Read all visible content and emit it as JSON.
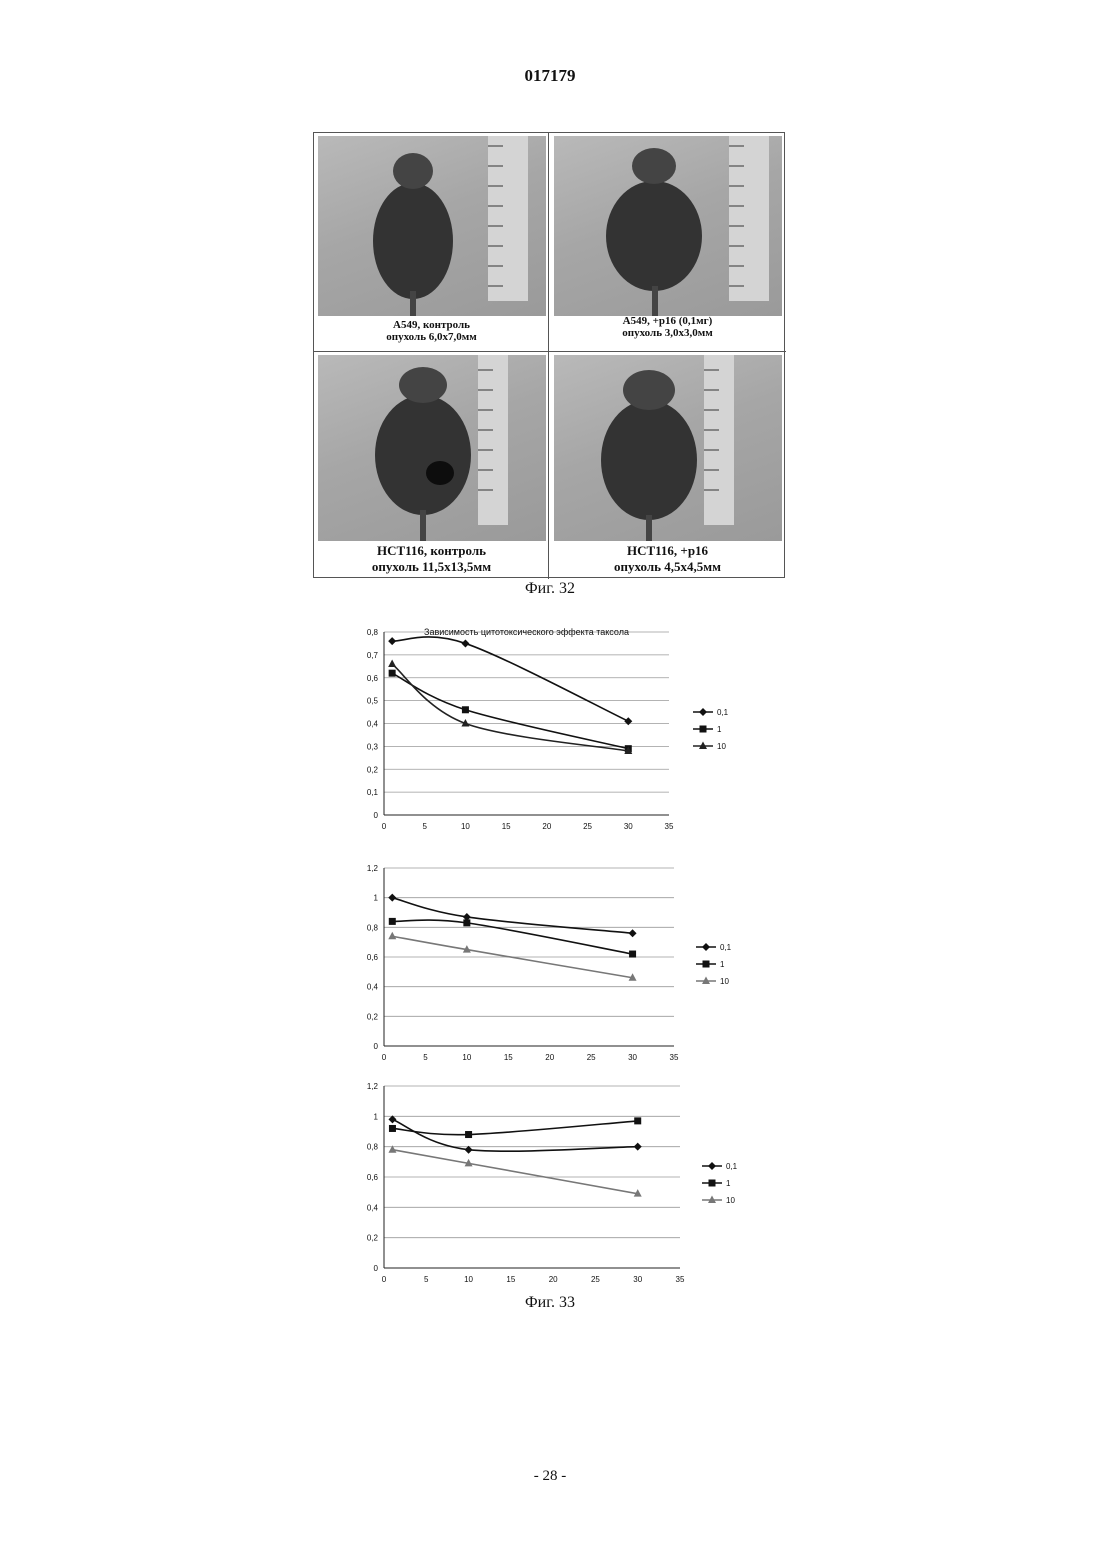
{
  "header": {
    "doc_number": "017179"
  },
  "figure32": {
    "caption": "Фиг. 32",
    "panels": [
      {
        "line1": "А549, контроль",
        "line2": "опухоль 6,0х7,0мм"
      },
      {
        "line1": "А549, +p16 (0,1мг)",
        "line2": "опухоль 3,0х3,0мм"
      },
      {
        "line1": "HCT116, контроль",
        "line2": "опухоль 11,5х13,5мм"
      },
      {
        "line1": "HCT116, +p16",
        "line2": "опухоль 4,5х4,5мм"
      }
    ]
  },
  "figure33": {
    "caption": "Фиг. 33"
  },
  "chart_data": [
    {
      "type": "line",
      "title": "Зависимость цитотоксического эффекта таксола",
      "x_ticks": [
        0,
        5,
        10,
        15,
        20,
        25,
        30,
        35
      ],
      "y_ticks": [
        "0",
        "0,1",
        "0,2",
        "0,3",
        "0,4",
        "0,5",
        "0,6",
        "0,7",
        "0,8"
      ],
      "xlim": [
        0,
        35
      ],
      "ylim": [
        0,
        0.8
      ],
      "grid": true,
      "legend_position": "right",
      "series": [
        {
          "name": "0,1",
          "marker": "diamond",
          "color": "#111111",
          "x": [
            1,
            10,
            30
          ],
          "y": [
            0.76,
            0.75,
            0.41
          ]
        },
        {
          "name": "1",
          "marker": "square",
          "color": "#111111",
          "x": [
            1,
            10,
            30
          ],
          "y": [
            0.62,
            0.46,
            0.29
          ]
        },
        {
          "name": "10",
          "marker": "triangle",
          "color": "#222222",
          "x": [
            1,
            10,
            30
          ],
          "y": [
            0.66,
            0.4,
            0.28
          ]
        }
      ]
    },
    {
      "type": "line",
      "title": "",
      "x_ticks": [
        0,
        5,
        10,
        15,
        20,
        25,
        30,
        35
      ],
      "y_ticks": [
        "0",
        "0,2",
        "0,4",
        "0,6",
        "0,8",
        "1",
        "1,2"
      ],
      "xlim": [
        0,
        35
      ],
      "ylim": [
        0,
        1.2
      ],
      "grid": true,
      "legend_position": "right",
      "series": [
        {
          "name": "0,1",
          "marker": "diamond",
          "color": "#111111",
          "x": [
            1,
            10,
            30
          ],
          "y": [
            1.0,
            0.87,
            0.76
          ]
        },
        {
          "name": "1",
          "marker": "square",
          "color": "#111111",
          "x": [
            1,
            10,
            30
          ],
          "y": [
            0.84,
            0.83,
            0.62
          ]
        },
        {
          "name": "10",
          "marker": "triangle",
          "color": "#777777",
          "x": [
            1,
            10,
            30
          ],
          "y": [
            0.74,
            0.65,
            0.46
          ]
        }
      ]
    },
    {
      "type": "line",
      "title": "",
      "x_ticks": [
        0,
        5,
        10,
        15,
        20,
        25,
        30,
        35
      ],
      "y_ticks": [
        "0",
        "0,2",
        "0,4",
        "0,6",
        "0,8",
        "1",
        "1,2"
      ],
      "xlim": [
        0,
        35
      ],
      "ylim": [
        0,
        1.2
      ],
      "grid": true,
      "legend_position": "right",
      "series": [
        {
          "name": "0,1",
          "marker": "diamond",
          "color": "#111111",
          "x": [
            1,
            10,
            30
          ],
          "y": [
            0.98,
            0.78,
            0.8
          ]
        },
        {
          "name": "1",
          "marker": "square",
          "color": "#111111",
          "x": [
            1,
            10,
            30
          ],
          "y": [
            0.92,
            0.88,
            0.97
          ]
        },
        {
          "name": "10",
          "marker": "triangle",
          "color": "#777777",
          "x": [
            1,
            10,
            30
          ],
          "y": [
            0.78,
            0.69,
            0.49
          ]
        }
      ]
    }
  ],
  "footer": {
    "page_label": "- 28 -"
  }
}
